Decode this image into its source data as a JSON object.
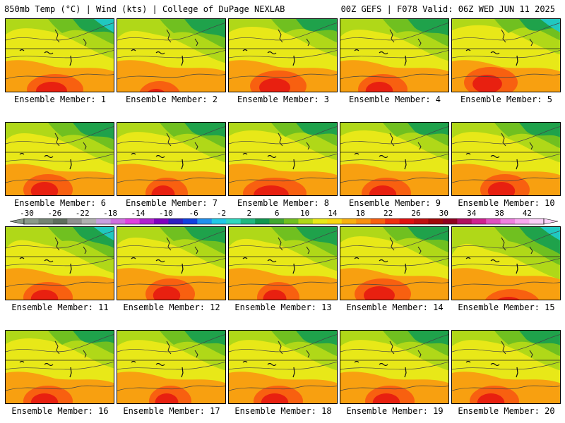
{
  "header": {
    "left": "850mb Temp (°C) | Wind (kts) | College of DuPage NEXLAB",
    "right": "00Z GEFS | F078 Valid: 06Z WED JUN 11 2025"
  },
  "panels": [
    {
      "caption": "Ensemble Member: 1"
    },
    {
      "caption": "Ensemble Member: 2"
    },
    {
      "caption": "Ensemble Member: 3"
    },
    {
      "caption": "Ensemble Member: 4"
    },
    {
      "caption": "Ensemble Member: 5"
    },
    {
      "caption": "Ensemble Member: 6"
    },
    {
      "caption": "Ensemble Member: 7"
    },
    {
      "caption": "Ensemble Member: 8"
    },
    {
      "caption": "Ensemble Member: 9"
    },
    {
      "caption": "Ensemble Member: 10"
    },
    {
      "caption": "Ensemble Member: 11"
    },
    {
      "caption": "Ensemble Member: 12"
    },
    {
      "caption": "Ensemble Member: 13"
    },
    {
      "caption": "Ensemble Member: 14"
    },
    {
      "caption": "Ensemble Member: 15"
    },
    {
      "caption": "Ensemble Member: 16"
    },
    {
      "caption": "Ensemble Member: 17"
    },
    {
      "caption": "Ensemble Member: 18"
    },
    {
      "caption": "Ensemble Member: 19"
    },
    {
      "caption": "Ensemble Member: 20"
    }
  ],
  "colorbar": {
    "labels": [
      "-30",
      "-26",
      "-22",
      "-18",
      "-14",
      "-10",
      "-6",
      "-2",
      "2",
      "6",
      "10",
      "14",
      "18",
      "22",
      "26",
      "30",
      "34",
      "38",
      "42"
    ],
    "colors": [
      "#8a9a8a",
      "#748474",
      "#5e6e5e",
      "#909090",
      "#b0b0b0",
      "#c8a0e0",
      "#d070e0",
      "#e040e0",
      "#b020d0",
      "#8000c0",
      "#3020c0",
      "#1040e0",
      "#2090f0",
      "#20c8e8",
      "#30d8c0",
      "#20b880",
      "#109850",
      "#40a830",
      "#70c020",
      "#b0d818",
      "#e8e818",
      "#f8d810",
      "#f8b010",
      "#f89010",
      "#f86010",
      "#f03010",
      "#e01010",
      "#c01010",
      "#a00808",
      "#900020",
      "#b01060",
      "#d02090",
      "#e050c0",
      "#f080e0",
      "#f8a8f0",
      "#fcd0f8"
    ]
  },
  "palette": {
    "green": "#1fa24b",
    "lightgreen": "#70c020",
    "lime": "#b0d818",
    "yellow": "#e8e818",
    "orange": "#f8a010",
    "red": "#e82010",
    "teal": "#20c8c0"
  }
}
